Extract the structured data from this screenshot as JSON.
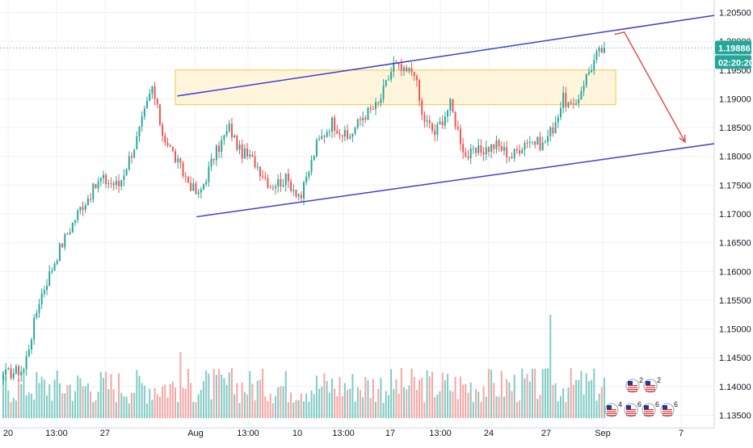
{
  "chart_data": {
    "type": "candlestick",
    "y_ticks": [
      "1.20500",
      "1.20000",
      "1.19500",
      "1.19000",
      "1.18500",
      "1.18000",
      "1.17500",
      "1.17000",
      "1.16500",
      "1.16000",
      "1.15500",
      "1.15000",
      "1.14500",
      "1.14000",
      "1.13500"
    ],
    "x_ticks": [
      "20",
      "13:00",
      "27",
      "Aug",
      "13:00",
      "10",
      "13:00",
      "17",
      "13:00",
      "24",
      "27",
      "Sep",
      "7"
    ],
    "ylim": [
      1.1345,
      1.2055
    ],
    "last_price": "1.19886",
    "countdown": "02:20:20",
    "grid": true,
    "colors": {
      "up": "#26a69a",
      "down": "#ef5350",
      "volume_up": "#80cbc4",
      "volume_down": "#f4a6a4",
      "channel": "#3f3fd0",
      "zone_fill": "#fff3d6",
      "zone_border": "#f5c842",
      "projection": "#e53935",
      "price_badge": "#26a69a"
    },
    "close_anchors": [
      [
        0,
        1.142
      ],
      [
        8,
        1.143
      ],
      [
        14,
        1.155
      ],
      [
        22,
        1.164
      ],
      [
        30,
        1.171
      ],
      [
        38,
        1.176
      ],
      [
        45,
        1.175
      ],
      [
        52,
        1.183
      ],
      [
        58,
        1.192
      ],
      [
        62,
        1.184
      ],
      [
        70,
        1.177
      ],
      [
        76,
        1.173
      ],
      [
        82,
        1.18
      ],
      [
        88,
        1.185
      ],
      [
        92,
        1.181
      ],
      [
        98,
        1.179
      ],
      [
        104,
        1.175
      ],
      [
        110,
        1.176
      ],
      [
        116,
        1.173
      ],
      [
        122,
        1.182
      ],
      [
        128,
        1.186
      ],
      [
        134,
        1.183
      ],
      [
        140,
        1.187
      ],
      [
        146,
        1.189
      ],
      [
        152,
        1.196
      ],
      [
        156,
        1.1945
      ],
      [
        160,
        1.195
      ],
      [
        163,
        1.187
      ],
      [
        168,
        1.184
      ],
      [
        174,
        1.189
      ],
      [
        180,
        1.18
      ],
      [
        186,
        1.181
      ],
      [
        192,
        1.182
      ],
      [
        198,
        1.18
      ],
      [
        204,
        1.183
      ],
      [
        210,
        1.182
      ],
      [
        214,
        1.185
      ],
      [
        218,
        1.19
      ],
      [
        222,
        1.188
      ],
      [
        226,
        1.193
      ],
      [
        231,
        1.1975
      ],
      [
        234,
        1.1989
      ]
    ],
    "events_row_top": [
      "2",
      "2"
    ],
    "events_row_bottom": [
      "4",
      "6",
      "6",
      "6"
    ],
    "zone": [
      1.195,
      1.189
    ],
    "channel_upper": [
      [
        0.2355,
        1.1905
      ],
      [
        0.9485,
        1.2045
      ]
    ],
    "channel_lower": [
      [
        0.2609,
        1.1695
      ],
      [
        0.9485,
        1.1822
      ]
    ],
    "projection": [
      [
        0.8162,
        1.2012
      ],
      [
        0.8291,
        1.2016
      ],
      [
        0.9099,
        1.1825
      ]
    ]
  }
}
